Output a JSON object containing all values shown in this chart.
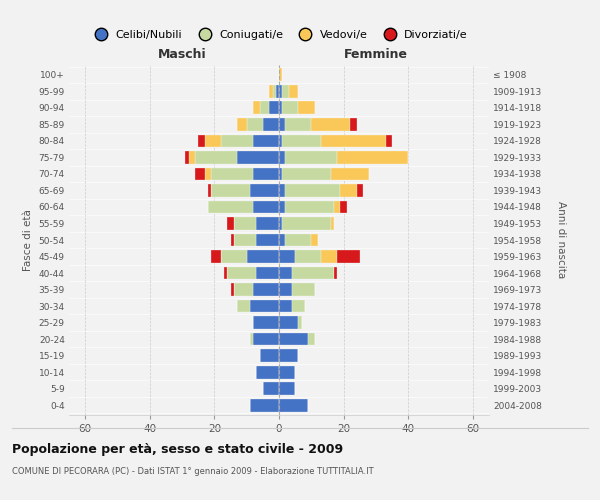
{
  "age_groups": [
    "0-4",
    "5-9",
    "10-14",
    "15-19",
    "20-24",
    "25-29",
    "30-34",
    "35-39",
    "40-44",
    "45-49",
    "50-54",
    "55-59",
    "60-64",
    "65-69",
    "70-74",
    "75-79",
    "80-84",
    "85-89",
    "90-94",
    "95-99",
    "100+"
  ],
  "birth_years": [
    "2004-2008",
    "1999-2003",
    "1994-1998",
    "1989-1993",
    "1984-1988",
    "1979-1983",
    "1974-1978",
    "1969-1973",
    "1964-1968",
    "1959-1963",
    "1954-1958",
    "1949-1953",
    "1944-1948",
    "1939-1943",
    "1934-1938",
    "1929-1933",
    "1924-1928",
    "1919-1923",
    "1914-1918",
    "1909-1913",
    "≤ 1908"
  ],
  "males": {
    "celibi": [
      9,
      5,
      7,
      6,
      8,
      8,
      9,
      8,
      7,
      10,
      7,
      7,
      8,
      9,
      8,
      13,
      8,
      5,
      3,
      1,
      0
    ],
    "coniugati": [
      0,
      0,
      0,
      0,
      1,
      0,
      4,
      6,
      9,
      8,
      7,
      7,
      14,
      12,
      13,
      13,
      10,
      5,
      3,
      1,
      0
    ],
    "vedovi": [
      0,
      0,
      0,
      0,
      0,
      0,
      0,
      0,
      0,
      0,
      0,
      0,
      0,
      0,
      2,
      2,
      5,
      3,
      2,
      1,
      0
    ],
    "divorziati": [
      0,
      0,
      0,
      0,
      0,
      0,
      0,
      1,
      1,
      3,
      1,
      2,
      0,
      1,
      3,
      1,
      2,
      0,
      0,
      0,
      0
    ]
  },
  "females": {
    "nubili": [
      9,
      5,
      5,
      6,
      9,
      6,
      4,
      4,
      4,
      5,
      2,
      1,
      2,
      2,
      1,
      2,
      1,
      2,
      1,
      1,
      0
    ],
    "coniugate": [
      0,
      0,
      0,
      0,
      2,
      1,
      4,
      7,
      13,
      8,
      8,
      15,
      15,
      17,
      15,
      16,
      12,
      8,
      5,
      2,
      0
    ],
    "vedove": [
      0,
      0,
      0,
      0,
      0,
      0,
      0,
      0,
      0,
      5,
      2,
      1,
      2,
      5,
      12,
      22,
      20,
      12,
      5,
      3,
      1
    ],
    "divorziate": [
      0,
      0,
      0,
      0,
      0,
      0,
      0,
      0,
      1,
      7,
      0,
      0,
      2,
      2,
      0,
      0,
      2,
      2,
      0,
      0,
      0
    ]
  },
  "colors": {
    "celibi_nubili": "#4472C4",
    "coniugati_e": "#C5D9A0",
    "vedovi_e": "#FAC858",
    "divorziati_e": "#D7191C"
  },
  "xlim": 65,
  "title": "Popolazione per età, sesso e stato civile - 2009",
  "subtitle": "COMUNE DI PECORARA (PC) - Dati ISTAT 1° gennaio 2009 - Elaborazione TUTTITALIA.IT",
  "ylabel_left": "Fasce di età",
  "ylabel_right": "Anni di nascita",
  "xlabel_maschi": "Maschi",
  "xlabel_femmine": "Femmine",
  "legend_labels": [
    "Celibi/Nubili",
    "Coniugati/e",
    "Vedovi/e",
    "Divorziati/e"
  ],
  "bg_color": "#f2f2f2"
}
